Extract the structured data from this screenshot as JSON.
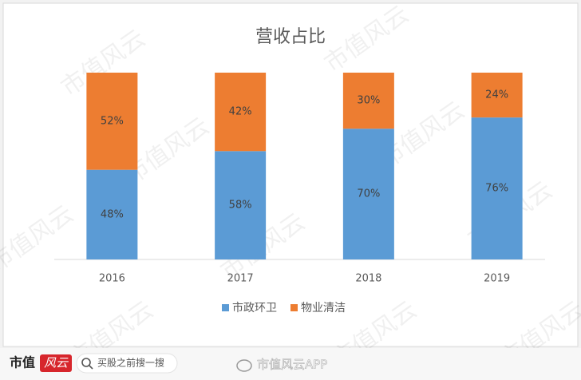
{
  "chart_data": {
    "type": "bar",
    "stacked": true,
    "title": "营收占比",
    "categories": [
      "2016",
      "2017",
      "2018",
      "2019"
    ],
    "series": [
      {
        "name": "市政环卫",
        "color": "#5b9bd5",
        "values": [
          48,
          58,
          70,
          76
        ],
        "value_labels": [
          "48%",
          "58%",
          "70%",
          "76%"
        ]
      },
      {
        "name": "物业清洁",
        "color": "#ed7d31",
        "values": [
          52,
          42,
          30,
          24
        ],
        "value_labels": [
          "52%",
          "42%",
          "30%",
          "24%"
        ]
      }
    ],
    "ylim": [
      0,
      100
    ],
    "legend": "bottom"
  },
  "watermark": "市值风云",
  "footer": {
    "logo_main": "市值",
    "logo_badge": "风云",
    "search": "买股之前搜一搜",
    "weibo": "市值风云APP"
  }
}
